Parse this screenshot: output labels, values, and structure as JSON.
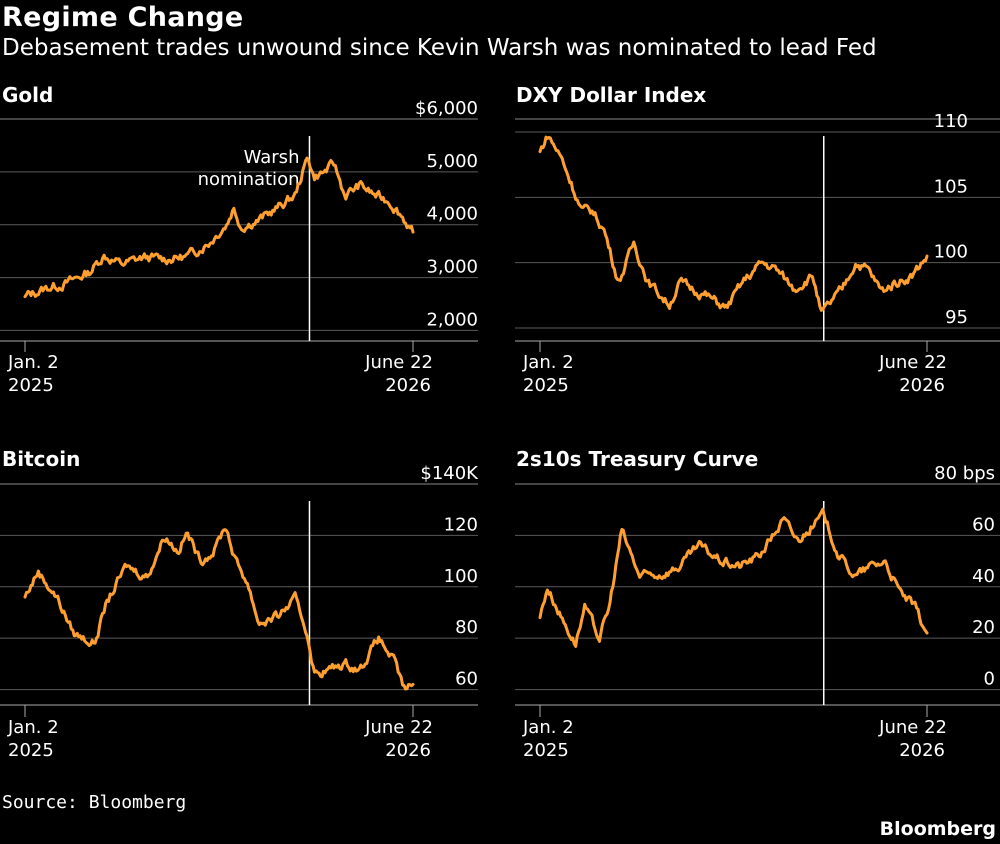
{
  "header": {
    "title": "Regime Change",
    "subtitle": "Debasement trades unwound since Kevin Warsh was nominated to lead Fed"
  },
  "footer": {
    "source": "Source: Bloomberg",
    "brand": "Bloomberg"
  },
  "colors": {
    "background": "#000000",
    "line": "#FF9F2F",
    "grid": "#5a5a5a",
    "marker": "#ffffff"
  },
  "chart_data": [
    {
      "type": "line",
      "title": "Gold",
      "ylim": [
        1800,
        6000
      ],
      "yticks": [
        2000,
        3000,
        4000,
        5000,
        6000
      ],
      "ytick_labels": [
        "2,000",
        "3,000",
        "4,000",
        "5,000",
        "$6,000"
      ],
      "x_start_label": [
        "Jan. 2",
        "2025"
      ],
      "x_end_label": [
        "June 22",
        "2026"
      ],
      "x_range": [
        "2025-01-02",
        "2026-06-22"
      ],
      "marker": {
        "date": "2026-01-30",
        "label": [
          "Warsh",
          "nomination"
        ]
      },
      "series": [
        {
          "x": [
            "2025-01-02",
            "2025-02-01",
            "2025-03-01",
            "2025-04-01",
            "2025-04-21",
            "2025-05-15",
            "2025-06-15",
            "2025-07-15",
            "2025-08-15",
            "2025-09-15",
            "2025-10-08",
            "2025-10-17",
            "2025-10-28",
            "2025-11-20",
            "2025-12-15",
            "2026-01-10",
            "2026-01-28",
            "2026-02-05",
            "2026-02-20",
            "2026-03-05",
            "2026-03-20",
            "2026-04-10",
            "2026-05-01",
            "2026-05-20",
            "2026-06-05",
            "2026-06-22"
          ],
          "values": [
            2640,
            2800,
            2900,
            3100,
            3420,
            3250,
            3380,
            3350,
            3400,
            3680,
            4020,
            4320,
            3960,
            4080,
            4300,
            4550,
            5300,
            4900,
            5000,
            5150,
            4550,
            4750,
            4550,
            4450,
            4200,
            3860
          ]
        }
      ]
    },
    {
      "type": "line",
      "title": "DXY Dollar Index",
      "ylim": [
        94,
        111
      ],
      "yticks": [
        95,
        100,
        105,
        110
      ],
      "ytick_labels": [
        "95",
        "100",
        "105",
        "110"
      ],
      "x_start_label": [
        "Jan. 2",
        "2025"
      ],
      "x_end_label": [
        "June 22",
        "2026"
      ],
      "x_range": [
        "2025-01-02",
        "2026-06-22"
      ],
      "marker": {
        "date": "2026-01-30"
      },
      "series": [
        {
          "x": [
            "2025-01-02",
            "2025-01-13",
            "2025-02-01",
            "2025-03-01",
            "2025-03-15",
            "2025-04-01",
            "2025-04-21",
            "2025-05-12",
            "2025-06-01",
            "2025-06-30",
            "2025-07-15",
            "2025-08-01",
            "2025-08-20",
            "2025-09-17",
            "2025-10-10",
            "2025-11-05",
            "2025-11-25",
            "2025-12-20",
            "2026-01-15",
            "2026-01-27",
            "2026-02-10",
            "2026-02-25",
            "2026-03-15",
            "2026-04-01",
            "2026-04-20",
            "2026-05-10",
            "2026-06-01",
            "2026-06-22"
          ],
          "values": [
            108.5,
            109.8,
            108,
            104,
            104,
            102.5,
            98.5,
            101.5,
            98.5,
            96.8,
            98.5,
            98,
            97.5,
            96.5,
            98.5,
            100,
            99.5,
            98,
            99,
            96,
            97,
            98,
            100,
            99.5,
            97.8,
            98.5,
            99,
            100.5
          ]
        }
      ]
    },
    {
      "type": "line",
      "title": "Bitcoin",
      "ylim": [
        54,
        140
      ],
      "yticks": [
        60,
        80,
        100,
        120
      ],
      "ytick_labels": [
        "60",
        "80",
        "100",
        "120",
        "$140K"
      ],
      "ytick_label_values": [
        60,
        80,
        100,
        120,
        140
      ],
      "x_start_label": [
        "Jan. 2",
        "2025"
      ],
      "x_end_label": [
        "June 22",
        "2026"
      ],
      "x_range": [
        "2025-01-02",
        "2026-06-22"
      ],
      "marker": {
        "date": "2026-01-30"
      },
      "series": [
        {
          "x": [
            "2025-01-02",
            "2025-01-20",
            "2025-02-15",
            "2025-03-10",
            "2025-04-08",
            "2025-04-25",
            "2025-05-22",
            "2025-06-20",
            "2025-07-14",
            "2025-08-01",
            "2025-08-14",
            "2025-09-01",
            "2025-09-20",
            "2025-10-06",
            "2025-10-20",
            "2025-11-05",
            "2025-11-21",
            "2025-12-15",
            "2026-01-10",
            "2026-01-27",
            "2026-02-06",
            "2026-03-01",
            "2026-03-20",
            "2026-04-10",
            "2026-05-05",
            "2026-05-25",
            "2026-06-10",
            "2026-06-22"
          ],
          "values": [
            96,
            106,
            96,
            82,
            78,
            94,
            108,
            104,
            120,
            114,
            121,
            110,
            114,
            124,
            110,
            102,
            86,
            88,
            95,
            82,
            66,
            68,
            70,
            68,
            80,
            72,
            60,
            62
          ]
        }
      ]
    },
    {
      "type": "line",
      "title": "2s10s Treasury Curve",
      "ylim": [
        -6,
        80
      ],
      "yticks": [
        0,
        20,
        40,
        60
      ],
      "ytick_labels": [
        "0",
        "20",
        "40",
        "60",
        "80 bps"
      ],
      "ytick_label_values": [
        0,
        20,
        40,
        60,
        80
      ],
      "x_start_label": [
        "Jan. 2",
        "2025"
      ],
      "x_end_label": [
        "June 22",
        "2026"
      ],
      "x_range": [
        "2025-01-02",
        "2026-06-22"
      ],
      "marker": {
        "date": "2026-01-30"
      },
      "series": [
        {
          "x": [
            "2025-01-02",
            "2025-01-12",
            "2025-02-01",
            "2025-02-20",
            "2025-03-05",
            "2025-03-25",
            "2025-04-08",
            "2025-04-25",
            "2025-05-20",
            "2025-06-20",
            "2025-07-15",
            "2025-08-10",
            "2025-09-10",
            "2025-10-05",
            "2025-11-01",
            "2025-12-05",
            "2025-12-25",
            "2026-01-15",
            "2026-01-30",
            "2026-02-20",
            "2026-03-15",
            "2026-04-05",
            "2026-04-25",
            "2026-05-15",
            "2026-06-05",
            "2026-06-22"
          ],
          "values": [
            28,
            40,
            28,
            18,
            32,
            20,
            32,
            62,
            44,
            45,
            48,
            56,
            50,
            48,
            52,
            66,
            58,
            64,
            68,
            52,
            44,
            48,
            50,
            38,
            32,
            22
          ]
        }
      ]
    }
  ]
}
